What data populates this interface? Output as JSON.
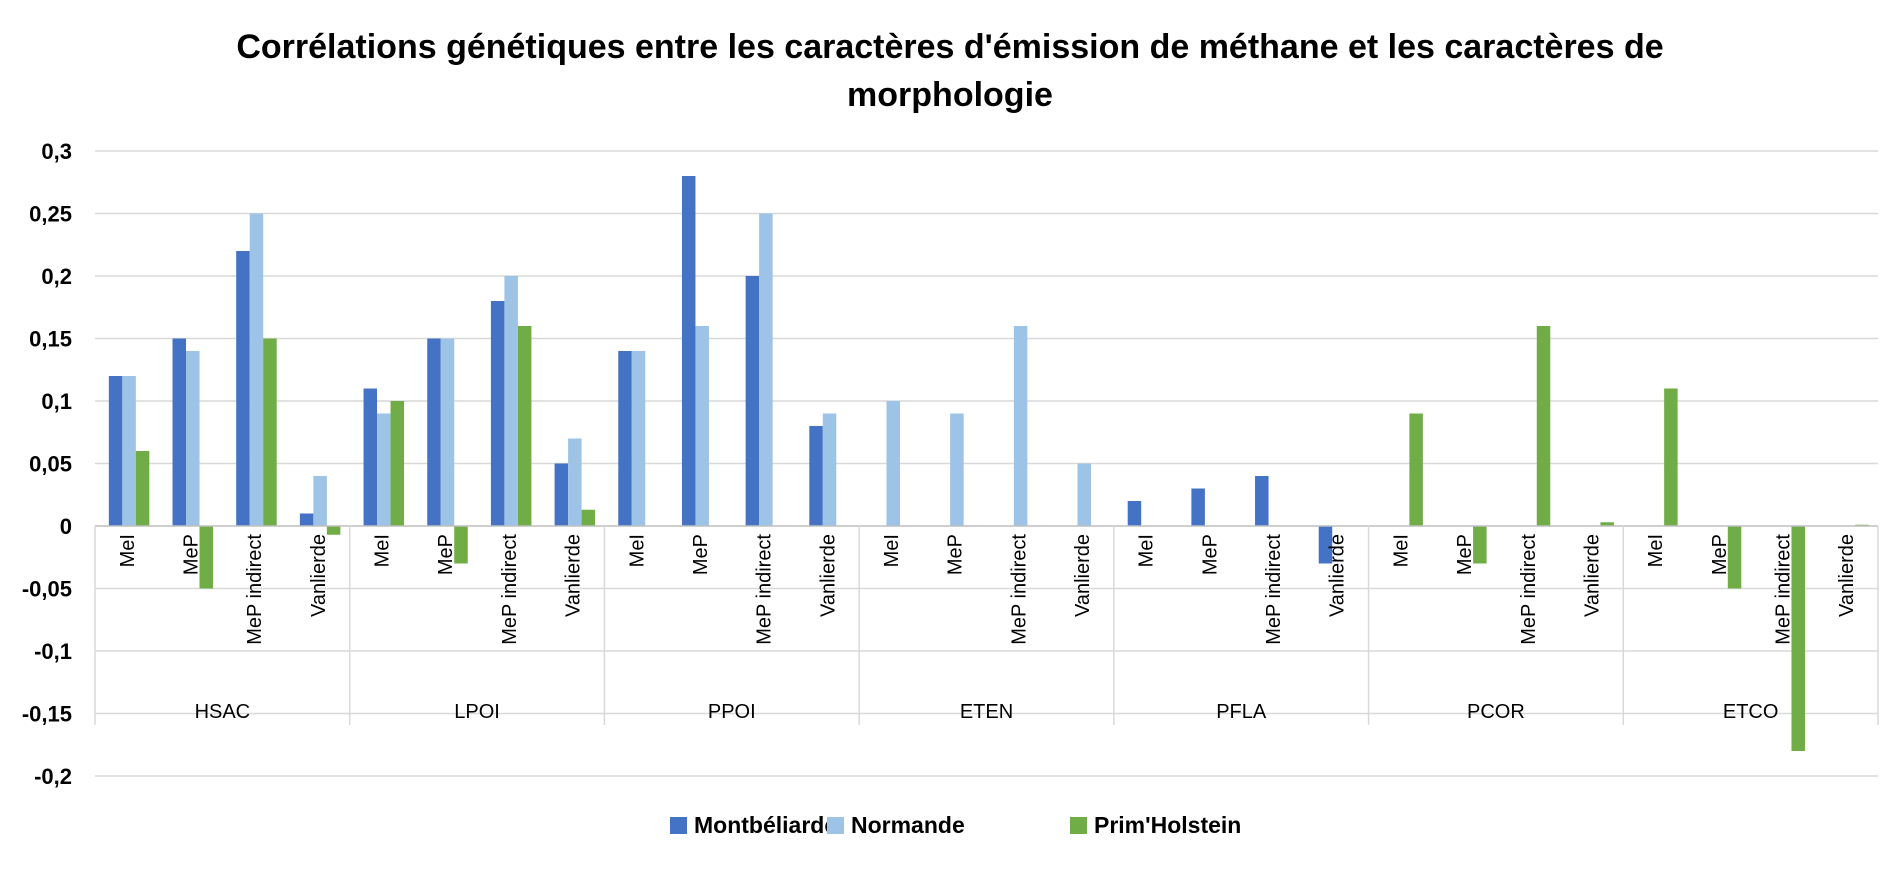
{
  "chart_data": {
    "type": "bar",
    "title": "Corrélations génétiques entre les caractères d'émission de méthane et les caractères de morphologie",
    "title_lines": [
      "Corrélations génétiques entre les caractères d'émission de méthane et les caractères de",
      "morphologie"
    ],
    "xlabel": "",
    "ylabel": "",
    "ylim": [
      -0.2,
      0.3
    ],
    "yticks": [
      0.3,
      0.25,
      0.2,
      0.15,
      0.1,
      0.05,
      0,
      -0.05,
      -0.1,
      -0.15,
      -0.2
    ],
    "ytick_labels": [
      "0,3",
      "0,25",
      "0,2",
      "0,15",
      "0,1",
      "0,05",
      "0",
      "-0,05",
      "-0,1",
      "-0,15",
      "-0,2"
    ],
    "grid": true,
    "legend_position": "bottom",
    "groups": [
      "HSAC",
      "LPOI",
      "PPOI",
      "ETEN",
      "PFLA",
      "PCOR",
      "ETCO"
    ],
    "subcategories": [
      "MeI",
      "MeP",
      "MeP indirect",
      "Vanlierde"
    ],
    "series": [
      {
        "name": "Montbéliarde",
        "color": "#4472C4",
        "values": [
          0.12,
          0.15,
          0.22,
          0.01,
          0.11,
          0.15,
          0.18,
          0.05,
          0.14,
          0.28,
          0.2,
          0.08,
          0,
          0,
          0,
          0,
          0.02,
          0.03,
          0.04,
          -0.03,
          0,
          0,
          0,
          0,
          0,
          0,
          0,
          0
        ]
      },
      {
        "name": "Normande",
        "color": "#9DC3E6",
        "values": [
          0.12,
          0.14,
          0.25,
          0.04,
          0.09,
          0.15,
          0.2,
          0.07,
          0.14,
          0.16,
          0.25,
          0.09,
          0.1,
          0.09,
          0.16,
          0.05,
          0,
          0,
          0,
          0,
          0,
          0,
          0,
          0,
          0,
          0,
          0,
          0
        ]
      },
      {
        "name": "Prim'Holstein",
        "color": "#70AD47",
        "values": [
          0.06,
          -0.05,
          0.15,
          -0.007,
          0.1,
          -0.03,
          0.16,
          0.013,
          0,
          0,
          0,
          0,
          0,
          0,
          0,
          0,
          0,
          0,
          0,
          0,
          0.09,
          -0.03,
          0.16,
          0.003,
          0.11,
          -0.05,
          -0.18,
          0.001
        ]
      }
    ]
  }
}
